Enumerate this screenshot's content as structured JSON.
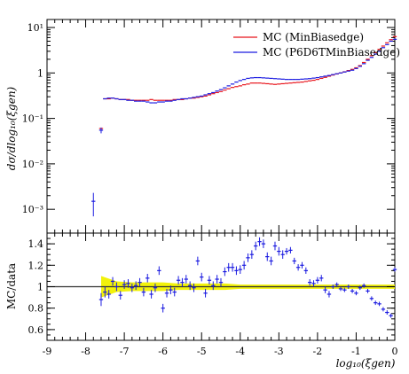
{
  "legend": {
    "red_label": "MC (MinBiasedge)",
    "blue_label": "MC (P6D6TMinBiasedge)"
  },
  "axes": {
    "top_ylabel": "dσ/dlog₁₀(ξgen)",
    "bottom_ylabel": "MC/data",
    "xlabel": "log₁₀(ξgen)"
  },
  "colors": {
    "red": "#e8141b",
    "blue": "#1a1ae0",
    "band": "#f2f20a",
    "ref_line": "#333333"
  },
  "chart_data": [
    {
      "type": "scatter",
      "title": "",
      "ylabel": "dσ/dlog₁₀(ξgen)",
      "xlim": [
        -9,
        0
      ],
      "ylim": [
        0.0003,
        15
      ],
      "yscale": "log",
      "xticks": [
        -9,
        -8,
        -7,
        -6,
        -5,
        -4,
        -3,
        -2,
        -1,
        0
      ],
      "yticks": [
        {
          "value": 0.001,
          "label": "10⁻³"
        },
        {
          "value": 0.01,
          "label": "10⁻²"
        },
        {
          "value": 0.1,
          "label": "10⁻¹"
        },
        {
          "value": 1,
          "label": "1"
        },
        {
          "value": 10,
          "label": "10¹"
        }
      ],
      "legend_position": "top-right",
      "series": [
        {
          "name": "MC (MinBiasedge)",
          "color": "red",
          "x": [
            -7.6,
            -7.5,
            -7.4,
            -7.3,
            -7.2,
            -7.1,
            -7.0,
            -6.9,
            -6.8,
            -6.7,
            -6.6,
            -6.5,
            -6.4,
            -6.3,
            -6.2,
            -6.1,
            -6.0,
            -5.9,
            -5.8,
            -5.7,
            -5.6,
            -5.5,
            -5.4,
            -5.3,
            -5.2,
            -5.1,
            -5.0,
            -4.9,
            -4.8,
            -4.7,
            -4.6,
            -4.5,
            -4.4,
            -4.3,
            -4.2,
            -4.1,
            -4.0,
            -3.9,
            -3.8,
            -3.7,
            -3.6,
            -3.5,
            -3.4,
            -3.3,
            -3.2,
            -3.1,
            -3.0,
            -2.9,
            -2.8,
            -2.7,
            -2.6,
            -2.5,
            -2.4,
            -2.3,
            -2.2,
            -2.1,
            -2.0,
            -1.9,
            -1.8,
            -1.7,
            -1.6,
            -1.5,
            -1.4,
            -1.3,
            -1.2,
            -1.1,
            -1.0,
            -0.9,
            -0.8,
            -0.7,
            -0.6,
            -0.5,
            -0.4,
            -0.3,
            -0.2,
            -0.1,
            0.0
          ],
          "y": [
            0.06,
            0.27,
            0.27,
            0.28,
            0.27,
            0.26,
            0.26,
            0.26,
            0.25,
            0.25,
            0.25,
            0.25,
            0.25,
            0.26,
            0.25,
            0.25,
            0.25,
            0.25,
            0.25,
            0.26,
            0.26,
            0.26,
            0.27,
            0.28,
            0.28,
            0.29,
            0.3,
            0.31,
            0.33,
            0.35,
            0.37,
            0.39,
            0.42,
            0.45,
            0.48,
            0.5,
            0.52,
            0.55,
            0.57,
            0.6,
            0.6,
            0.6,
            0.59,
            0.58,
            0.57,
            0.56,
            0.57,
            0.58,
            0.59,
            0.6,
            0.61,
            0.62,
            0.63,
            0.65,
            0.67,
            0.69,
            0.72,
            0.76,
            0.8,
            0.85,
            0.9,
            0.95,
            1.0,
            1.06,
            1.13,
            1.2,
            1.3,
            1.45,
            1.7,
            2.0,
            2.4,
            2.8,
            3.3,
            3.9,
            4.6,
            5.4,
            6.3
          ]
        },
        {
          "name": "MC (P6D6TMinBiasedge)",
          "color": "blue",
          "x": [
            -7.8,
            -7.6,
            -7.5,
            -7.4,
            -7.3,
            -7.2,
            -7.1,
            -7.0,
            -6.9,
            -6.8,
            -6.7,
            -6.6,
            -6.5,
            -6.4,
            -6.3,
            -6.2,
            -6.1,
            -6.0,
            -5.9,
            -5.8,
            -5.7,
            -5.6,
            -5.5,
            -5.4,
            -5.3,
            -5.2,
            -5.1,
            -5.0,
            -4.9,
            -4.8,
            -4.7,
            -4.6,
            -4.5,
            -4.4,
            -4.3,
            -4.2,
            -4.1,
            -4.0,
            -3.9,
            -3.8,
            -3.7,
            -3.6,
            -3.5,
            -3.4,
            -3.3,
            -3.2,
            -3.1,
            -3.0,
            -2.9,
            -2.8,
            -2.7,
            -2.6,
            -2.5,
            -2.4,
            -2.3,
            -2.2,
            -2.1,
            -2.0,
            -1.9,
            -1.8,
            -1.7,
            -1.6,
            -1.5,
            -1.4,
            -1.3,
            -1.2,
            -1.1,
            -1.0,
            -0.9,
            -0.8,
            -0.7,
            -0.6,
            -0.5,
            -0.4,
            -0.3,
            -0.2,
            -0.1,
            0.0
          ],
          "y": [
            0.0015,
            0.055,
            0.27,
            0.28,
            0.28,
            0.27,
            0.26,
            0.26,
            0.25,
            0.25,
            0.24,
            0.24,
            0.24,
            0.23,
            0.22,
            0.22,
            0.23,
            0.23,
            0.24,
            0.24,
            0.25,
            0.26,
            0.27,
            0.27,
            0.28,
            0.29,
            0.3,
            0.31,
            0.33,
            0.35,
            0.37,
            0.4,
            0.43,
            0.47,
            0.52,
            0.57,
            0.63,
            0.68,
            0.72,
            0.76,
            0.78,
            0.79,
            0.79,
            0.78,
            0.77,
            0.76,
            0.75,
            0.74,
            0.73,
            0.72,
            0.72,
            0.72,
            0.72,
            0.73,
            0.74,
            0.75,
            0.77,
            0.79,
            0.82,
            0.85,
            0.88,
            0.92,
            0.96,
            1.0,
            1.05,
            1.1,
            1.15,
            1.25,
            1.4,
            1.6,
            1.9,
            2.2,
            2.6,
            3.0,
            3.6,
            4.2,
            5.0,
            5.5
          ],
          "yerr": [
            0.0008,
            0.008,
            0,
            0,
            0,
            0,
            0,
            0,
            0,
            0,
            0,
            0,
            0,
            0,
            0,
            0,
            0,
            0,
            0,
            0,
            0,
            0,
            0,
            0,
            0,
            0,
            0,
            0,
            0,
            0,
            0,
            0,
            0,
            0,
            0,
            0,
            0,
            0,
            0,
            0,
            0,
            0,
            0,
            0,
            0,
            0,
            0,
            0,
            0,
            0,
            0,
            0,
            0,
            0,
            0,
            0,
            0,
            0,
            0,
            0,
            0,
            0,
            0,
            0,
            0,
            0,
            0,
            0,
            0,
            0,
            0,
            0,
            0,
            0,
            0,
            0,
            0,
            0
          ]
        }
      ]
    },
    {
      "type": "scatter",
      "title": "",
      "xlabel": "log₁₀(ξgen)",
      "ylabel": "MC/data",
      "xlim": [
        -9,
        0
      ],
      "ylim": [
        0.5,
        1.5
      ],
      "xticks": [
        -9,
        -8,
        -7,
        -6,
        -5,
        -4,
        -3,
        -2,
        -1,
        0
      ],
      "yticks": [
        0.6,
        0.8,
        1.0,
        1.2,
        1.4
      ],
      "reference_line": 1.0,
      "band": {
        "x": [
          -7.6,
          -7.2,
          -6.8,
          -6.4,
          -6.0,
          -5.6,
          -5.2,
          -4.8,
          -4.4,
          -4.0,
          -3.6,
          -3.2,
          -2.8,
          -2.4,
          -2.0,
          -1.6,
          -1.2,
          -0.8,
          -0.4,
          0.0
        ],
        "low": [
          0.9,
          0.95,
          0.96,
          0.96,
          0.96,
          0.97,
          0.97,
          0.97,
          0.97,
          0.98,
          0.98,
          0.98,
          0.98,
          0.98,
          0.98,
          0.98,
          0.98,
          0.98,
          0.98,
          0.98
        ],
        "high": [
          1.1,
          1.05,
          1.04,
          1.04,
          1.04,
          1.03,
          1.03,
          1.03,
          1.03,
          1.02,
          1.02,
          1.02,
          1.02,
          1.02,
          1.02,
          1.02,
          1.02,
          1.02,
          1.02,
          1.02
        ]
      },
      "series": [
        {
          "name": "MC (P6D6TMinBiasedge)",
          "color": "blue",
          "x": [
            -7.6,
            -7.5,
            -7.4,
            -7.3,
            -7.2,
            -7.1,
            -7.0,
            -6.9,
            -6.8,
            -6.7,
            -6.6,
            -6.5,
            -6.4,
            -6.3,
            -6.2,
            -6.1,
            -6.0,
            -5.9,
            -5.8,
            -5.7,
            -5.6,
            -5.5,
            -5.4,
            -5.3,
            -5.2,
            -5.1,
            -5.0,
            -4.9,
            -4.8,
            -4.7,
            -4.6,
            -4.5,
            -4.4,
            -4.3,
            -4.2,
            -4.1,
            -4.0,
            -3.9,
            -3.8,
            -3.7,
            -3.6,
            -3.5,
            -3.4,
            -3.3,
            -3.2,
            -3.1,
            -3.0,
            -2.9,
            -2.8,
            -2.7,
            -2.6,
            -2.5,
            -2.4,
            -2.3,
            -2.2,
            -2.1,
            -2.0,
            -1.9,
            -1.8,
            -1.7,
            -1.6,
            -1.5,
            -1.4,
            -1.3,
            -1.2,
            -1.1,
            -1.0,
            -0.9,
            -0.8,
            -0.7,
            -0.6,
            -0.5,
            -0.4,
            -0.3,
            -0.2,
            -0.1,
            0.0
          ],
          "y": [
            0.88,
            0.95,
            0.93,
            1.05,
            1.0,
            0.92,
            1.02,
            1.03,
            0.99,
            1.01,
            1.04,
            0.95,
            1.08,
            0.93,
            0.99,
            1.15,
            0.8,
            0.94,
            0.97,
            0.95,
            1.06,
            1.04,
            1.07,
            1.01,
            0.99,
            1.24,
            1.09,
            0.94,
            1.06,
            1.01,
            1.07,
            1.04,
            1.14,
            1.18,
            1.18,
            1.15,
            1.16,
            1.2,
            1.27,
            1.3,
            1.38,
            1.42,
            1.4,
            1.28,
            1.24,
            1.38,
            1.33,
            1.3,
            1.33,
            1.34,
            1.24,
            1.18,
            1.2,
            1.15,
            1.04,
            1.03,
            1.06,
            1.08,
            0.97,
            0.93,
            1.0,
            1.02,
            0.98,
            0.97,
            1.0,
            0.96,
            0.94,
            0.99,
            1.01,
            0.96,
            0.89,
            0.85,
            0.84,
            0.79,
            0.76,
            0.73,
            1.16
          ],
          "yerr": [
            0.06,
            0.05,
            0.04,
            0.04,
            0.04,
            0.04,
            0.04,
            0.04,
            0.04,
            0.04,
            0.04,
            0.04,
            0.04,
            0.04,
            0.04,
            0.04,
            0.04,
            0.04,
            0.04,
            0.04,
            0.04,
            0.04,
            0.04,
            0.04,
            0.04,
            0.04,
            0.04,
            0.04,
            0.04,
            0.04,
            0.04,
            0.04,
            0.04,
            0.04,
            0.04,
            0.04,
            0.04,
            0.04,
            0.04,
            0.04,
            0.04,
            0.04,
            0.04,
            0.04,
            0.04,
            0.04,
            0.04,
            0.04,
            0.03,
            0.03,
            0.03,
            0.03,
            0.03,
            0.03,
            0.03,
            0.03,
            0.03,
            0.03,
            0.03,
            0.03,
            0.02,
            0.02,
            0.02,
            0.02,
            0.02,
            0.02,
            0.02,
            0.02,
            0.02,
            0.02,
            0.02,
            0.02,
            0.02,
            0.02,
            0.02,
            0.02,
            0.02
          ]
        }
      ]
    }
  ]
}
